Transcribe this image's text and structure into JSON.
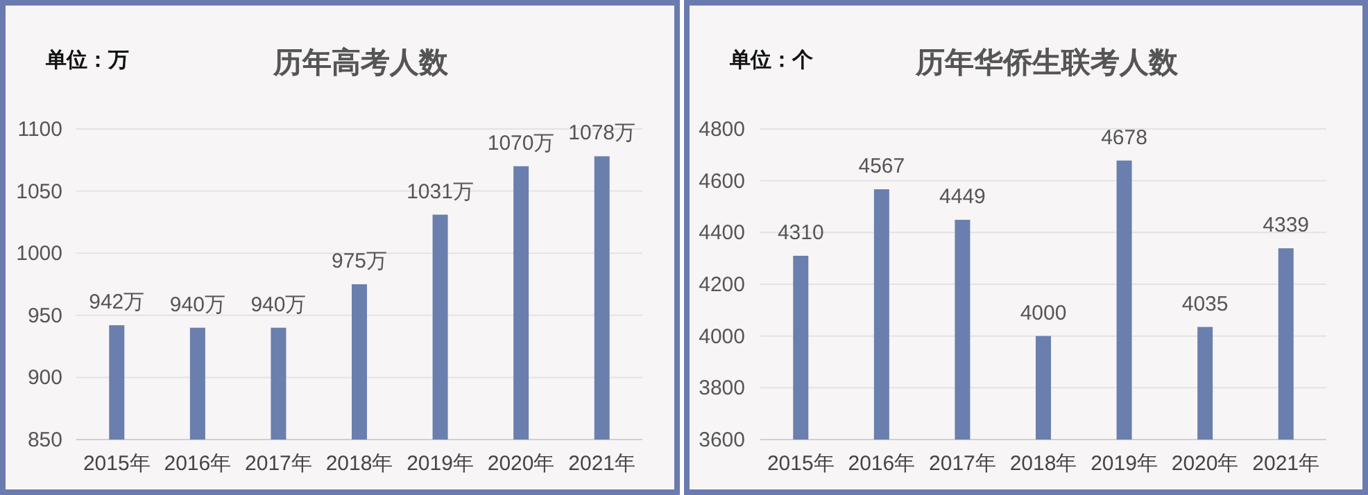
{
  "chart_data": [
    {
      "type": "bar",
      "title": "历年高考人数",
      "annotations": [
        "单位：万"
      ],
      "categories": [
        "2015年",
        "2016年",
        "2017年",
        "2018年",
        "2019年",
        "2020年",
        "2021年"
      ],
      "series": [
        {
          "color": "#6b7fae",
          "values": [
            942,
            940,
            940,
            975,
            1031,
            1070,
            1078
          ]
        }
      ],
      "value_labels": [
        "942万",
        "940万",
        "940万",
        "975万",
        "1031万",
        "1070万",
        "1078万"
      ],
      "ylim": [
        850,
        1100
      ],
      "yticks": [
        850,
        900,
        950,
        1000,
        1050,
        1100
      ],
      "grid": "y"
    },
    {
      "type": "bar",
      "title": "历年华侨生联考人数",
      "annotations": [
        "单位：个"
      ],
      "categories": [
        "2015年",
        "2016年",
        "2017年",
        "2018年",
        "2019年",
        "2020年",
        "2021年"
      ],
      "series": [
        {
          "color": "#6b7fae",
          "values": [
            4310,
            4567,
            4449,
            4000,
            4678,
            4035,
            4339
          ]
        }
      ],
      "data_labels": true,
      "ylim": [
        3600,
        4800
      ],
      "yticks": [
        3600,
        3800,
        4000,
        4200,
        4400,
        4600,
        4800
      ],
      "grid": "y"
    }
  ]
}
